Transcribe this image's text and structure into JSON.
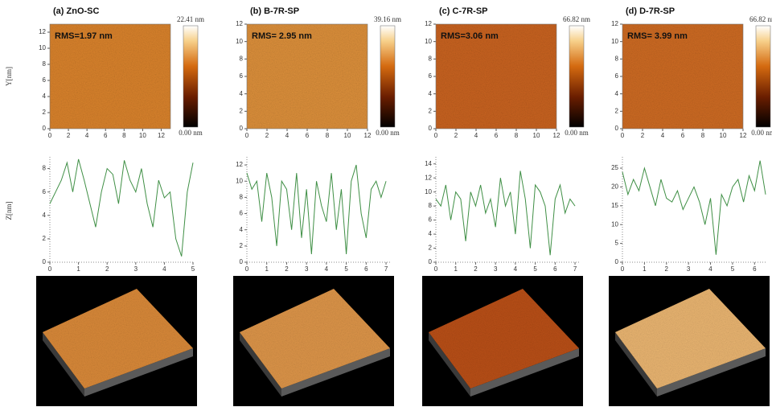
{
  "y_axis_label": "Y[nm]",
  "z_axis_label": "Z[nm]",
  "panels": [
    {
      "label": "(a) ZnO-SC",
      "rms": "RMS=1.97 nm",
      "colorbar_max": "22.41 nm",
      "colorbar_min": "0.00 nm",
      "map_lim": [
        0,
        13
      ],
      "map_ticks": [
        0,
        2,
        4,
        6,
        8,
        10,
        12
      ],
      "profile": {
        "xlim": [
          0,
          5
        ],
        "ylim": [
          0,
          9
        ],
        "xticks": [
          0,
          1,
          2,
          3,
          4,
          5
        ],
        "yticks": [
          0,
          2,
          4,
          6,
          8
        ],
        "x": [
          0,
          0.2,
          0.4,
          0.6,
          0.8,
          1,
          1.2,
          1.4,
          1.6,
          1.8,
          2,
          2.2,
          2.4,
          2.6,
          2.8,
          3,
          3.2,
          3.4,
          3.6,
          3.8,
          4,
          4.2,
          4.4,
          4.6,
          4.8,
          5
        ],
        "z": [
          5,
          6,
          7,
          8.5,
          6,
          8.8,
          7,
          5,
          3,
          6,
          8,
          7.5,
          5,
          8.7,
          7,
          6,
          8,
          5,
          3,
          7,
          5.5,
          6,
          2,
          0.5,
          6,
          8.5
        ]
      }
    },
    {
      "label": "(b) B-7R-SP",
      "rms": "RMS= 2.95 nm",
      "colorbar_max": "39.16 nm",
      "colorbar_min": "0.00 nm",
      "map_lim": [
        0,
        12
      ],
      "map_ticks": [
        0,
        2,
        4,
        6,
        8,
        10,
        12
      ],
      "profile": {
        "xlim": [
          0,
          7.2
        ],
        "ylim": [
          0,
          13
        ],
        "xticks": [
          0,
          1,
          2,
          3,
          4,
          5,
          6,
          7
        ],
        "yticks": [
          0,
          2,
          4,
          6,
          8,
          10,
          12
        ],
        "x": [
          0,
          0.25,
          0.5,
          0.75,
          1,
          1.25,
          1.5,
          1.75,
          2,
          2.25,
          2.5,
          2.75,
          3,
          3.25,
          3.5,
          3.75,
          4,
          4.25,
          4.5,
          4.75,
          5,
          5.25,
          5.5,
          5.75,
          6,
          6.25,
          6.5,
          6.75,
          7
        ],
        "z": [
          11,
          9,
          10,
          5,
          11,
          8,
          2,
          10,
          9,
          4,
          11,
          3,
          9,
          1,
          10,
          7,
          5,
          11,
          4,
          9,
          1,
          10,
          12,
          6,
          3,
          9,
          10,
          8,
          10
        ]
      }
    },
    {
      "label": "(c) C-7R-SP",
      "rms": "RMS=3.06 nm",
      "colorbar_max": "66.82 nm",
      "colorbar_min": "0.00 nm",
      "map_lim": [
        0,
        12
      ],
      "map_ticks": [
        0,
        2,
        4,
        6,
        8,
        10,
        12
      ],
      "profile": {
        "xlim": [
          0,
          7.2
        ],
        "ylim": [
          0,
          15
        ],
        "xticks": [
          0,
          1,
          2,
          3,
          4,
          5,
          6,
          7
        ],
        "yticks": [
          0,
          2,
          4,
          6,
          8,
          10,
          12,
          14
        ],
        "x": [
          0,
          0.25,
          0.5,
          0.75,
          1,
          1.25,
          1.5,
          1.75,
          2,
          2.25,
          2.5,
          2.75,
          3,
          3.25,
          3.5,
          3.75,
          4,
          4.25,
          4.5,
          4.75,
          5,
          5.25,
          5.5,
          5.75,
          6,
          6.25,
          6.5,
          6.75,
          7
        ],
        "z": [
          9,
          8,
          11,
          6,
          10,
          9,
          3,
          10,
          8,
          11,
          7,
          9,
          5,
          12,
          8,
          10,
          4,
          13,
          9,
          2,
          11,
          10,
          8,
          1,
          9,
          11,
          7,
          9,
          8
        ]
      }
    },
    {
      "label": "(d) D-7R-SP",
      "rms": "RMS= 3.99 nm",
      "colorbar_max": "66.82 nm",
      "colorbar_min": "0.00 nm",
      "map_lim": [
        0,
        12
      ],
      "map_ticks": [
        0,
        2,
        4,
        6,
        8,
        10,
        12
      ],
      "profile": {
        "xlim": [
          0,
          6.5
        ],
        "ylim": [
          0,
          28
        ],
        "xticks": [
          0,
          1,
          2,
          3,
          4,
          5,
          6
        ],
        "yticks": [
          0,
          5,
          10,
          15,
          20,
          25
        ],
        "x": [
          0,
          0.25,
          0.5,
          0.75,
          1,
          1.25,
          1.5,
          1.75,
          2,
          2.25,
          2.5,
          2.75,
          3,
          3.25,
          3.5,
          3.75,
          4,
          4.25,
          4.5,
          4.75,
          5,
          5.25,
          5.5,
          5.75,
          6,
          6.25,
          6.5
        ],
        "z": [
          24,
          18,
          22,
          19,
          25,
          20,
          15,
          22,
          17,
          16,
          19,
          14,
          17,
          20,
          16,
          10,
          17,
          2,
          18,
          15,
          20,
          22,
          16,
          23,
          19,
          27,
          18
        ]
      }
    }
  ]
}
